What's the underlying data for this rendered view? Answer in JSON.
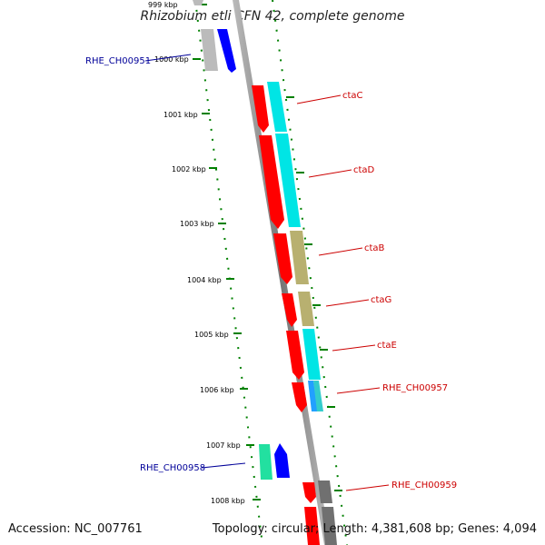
{
  "title": "Rhizobium etli CFN 42, complete genome",
  "footer": {
    "accession": "Accession: NC_007761",
    "summary": "Topology: circular; Length: 4,381,608 bp; Genes: 4,094"
  },
  "scale_ticks": [
    "999 kbp",
    "1000 kbp",
    "1001 kbp",
    "1002 kbp",
    "1003 kbp",
    "1004 kbp",
    "1005 kbp",
    "1006 kbp",
    "1007 kbp",
    "1008 kbp"
  ],
  "gene_labels": {
    "reverse": [
      "RHE_CH00951",
      "RHE_CH00958"
    ],
    "forward": [
      "ctaC",
      "ctaD",
      "ctaB",
      "ctaG",
      "ctaE",
      "RHE_CH00957",
      "RHE_CH00959"
    ]
  },
  "colors": {
    "gene_red": "#ff0000",
    "cog_cyan": "#00e5e5",
    "cog_olive": "#b8b070",
    "cog_blue": "#0000ff",
    "cog_green": "#22e0a0",
    "cog_grey": "#bbbbbb",
    "cog_darkgrey": "#707070",
    "backbone": "#888888",
    "tick_green": "#008000",
    "label_red": "#cc0000",
    "label_blue": "#000099"
  }
}
